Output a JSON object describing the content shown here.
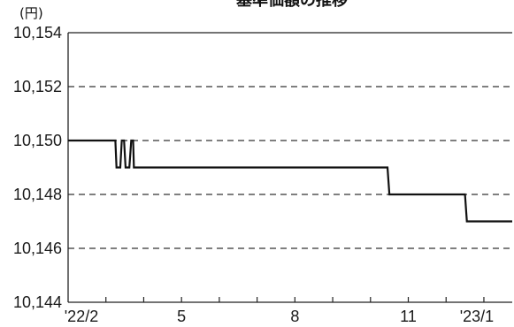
{
  "chart_data": {
    "type": "line",
    "title": "基準価額の推移",
    "unit": "(円)",
    "x_tick_labels": [
      "'22/2",
      "5",
      "8",
      "11",
      "'23/1"
    ],
    "x_ticks_month_index": [
      0,
      3,
      6,
      9,
      11
    ],
    "y_tick_labels": [
      "10,144",
      "10,146",
      "10,148",
      "10,150",
      "10,152",
      "10,154"
    ],
    "ylim": [
      10144,
      10154
    ],
    "y_grid_values": [
      10146,
      10148,
      10150,
      10152
    ],
    "grid": "horizontal-dashed",
    "x_range_months": [
      0,
      11.75
    ],
    "series": [
      {
        "color": "#111111",
        "points": [
          [
            0.0,
            10150
          ],
          [
            1.25,
            10150
          ],
          [
            1.28,
            10149
          ],
          [
            1.38,
            10149
          ],
          [
            1.42,
            10150
          ],
          [
            1.48,
            10150
          ],
          [
            1.52,
            10149
          ],
          [
            1.62,
            10149
          ],
          [
            1.67,
            10150
          ],
          [
            1.72,
            10150
          ],
          [
            1.74,
            10149
          ],
          [
            8.45,
            10149
          ],
          [
            8.5,
            10148
          ],
          [
            10.5,
            10148
          ],
          [
            10.55,
            10147
          ],
          [
            11.75,
            10147
          ]
        ]
      }
    ]
  }
}
